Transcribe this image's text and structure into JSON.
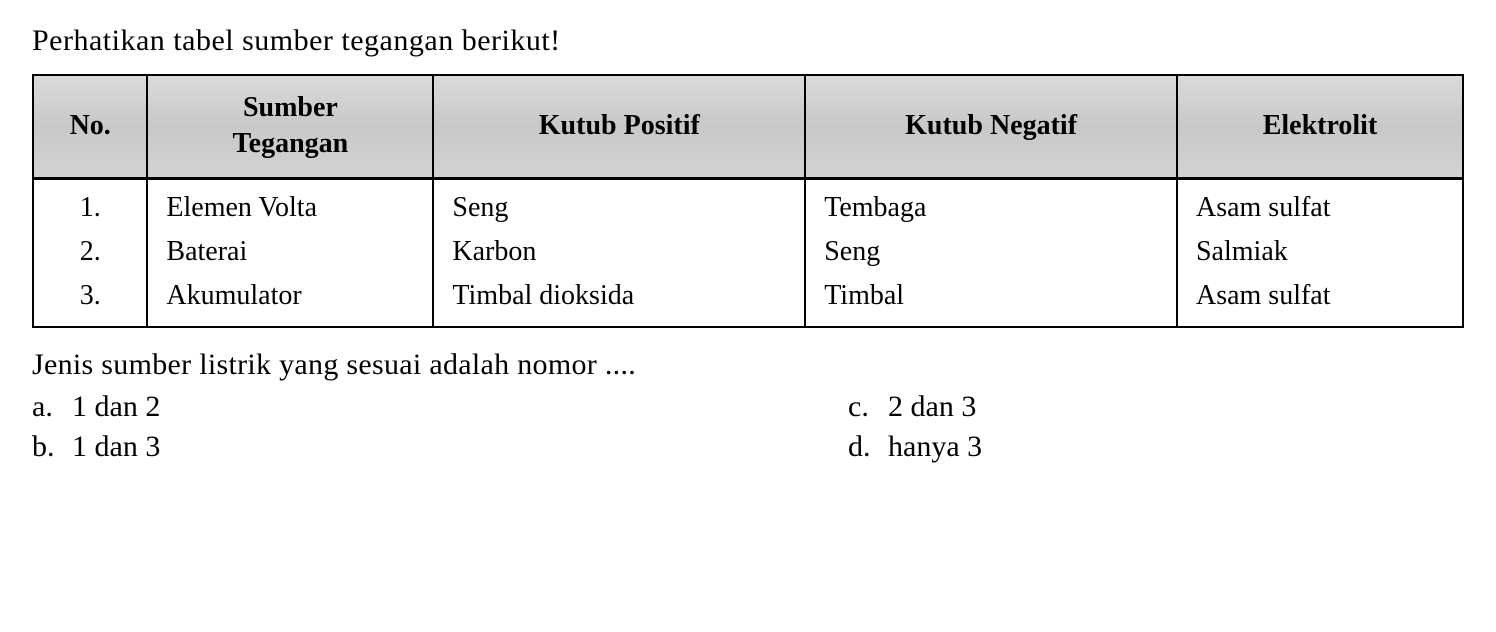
{
  "instruction": "Perhatikan tabel sumber tegangan berikut!",
  "table": {
    "columns": [
      {
        "label": "No.",
        "align": "center"
      },
      {
        "label": "Sumber\nTegangan",
        "align": "center"
      },
      {
        "label": "Kutub Positif",
        "align": "center"
      },
      {
        "label": "Kutub Negatif",
        "align": "center"
      },
      {
        "label": "Elektrolit",
        "align": "center"
      }
    ],
    "rows": [
      {
        "no": "1.",
        "sumber": "Elemen Volta",
        "positif": "Seng",
        "negatif": "Tembaga",
        "elektrolit": "Asam sulfat"
      },
      {
        "no": "2.",
        "sumber": "Baterai",
        "positif": "Karbon",
        "negatif": "Seng",
        "elektrolit": "Salmiak"
      },
      {
        "no": "3.",
        "sumber": "Akumulator",
        "positif": "Timbal dioksida",
        "negatif": "Timbal",
        "elektrolit": "Asam sulfat"
      }
    ],
    "header_bg": "#d0d0d0",
    "border_color": "#000000",
    "font_size": 28,
    "header_font_weight": "bold",
    "background_color": "#ffffff"
  },
  "question": "Jenis sumber listrik yang sesuai adalah nomor ....",
  "options": {
    "a": {
      "letter": "a.",
      "text": "1 dan 2"
    },
    "b": {
      "letter": "b.",
      "text": "1 dan 3"
    },
    "c": {
      "letter": "c.",
      "text": "2 dan 3"
    },
    "d": {
      "letter": "d.",
      "text": "hanya 3"
    }
  },
  "colors": {
    "text": "#000000",
    "background": "#ffffff",
    "header_bg": "#d0d0d0",
    "border": "#000000"
  },
  "typography": {
    "body_font": "Georgia, Times New Roman, serif",
    "instruction_size": 30,
    "table_size": 28,
    "question_size": 30,
    "option_size": 30
  }
}
